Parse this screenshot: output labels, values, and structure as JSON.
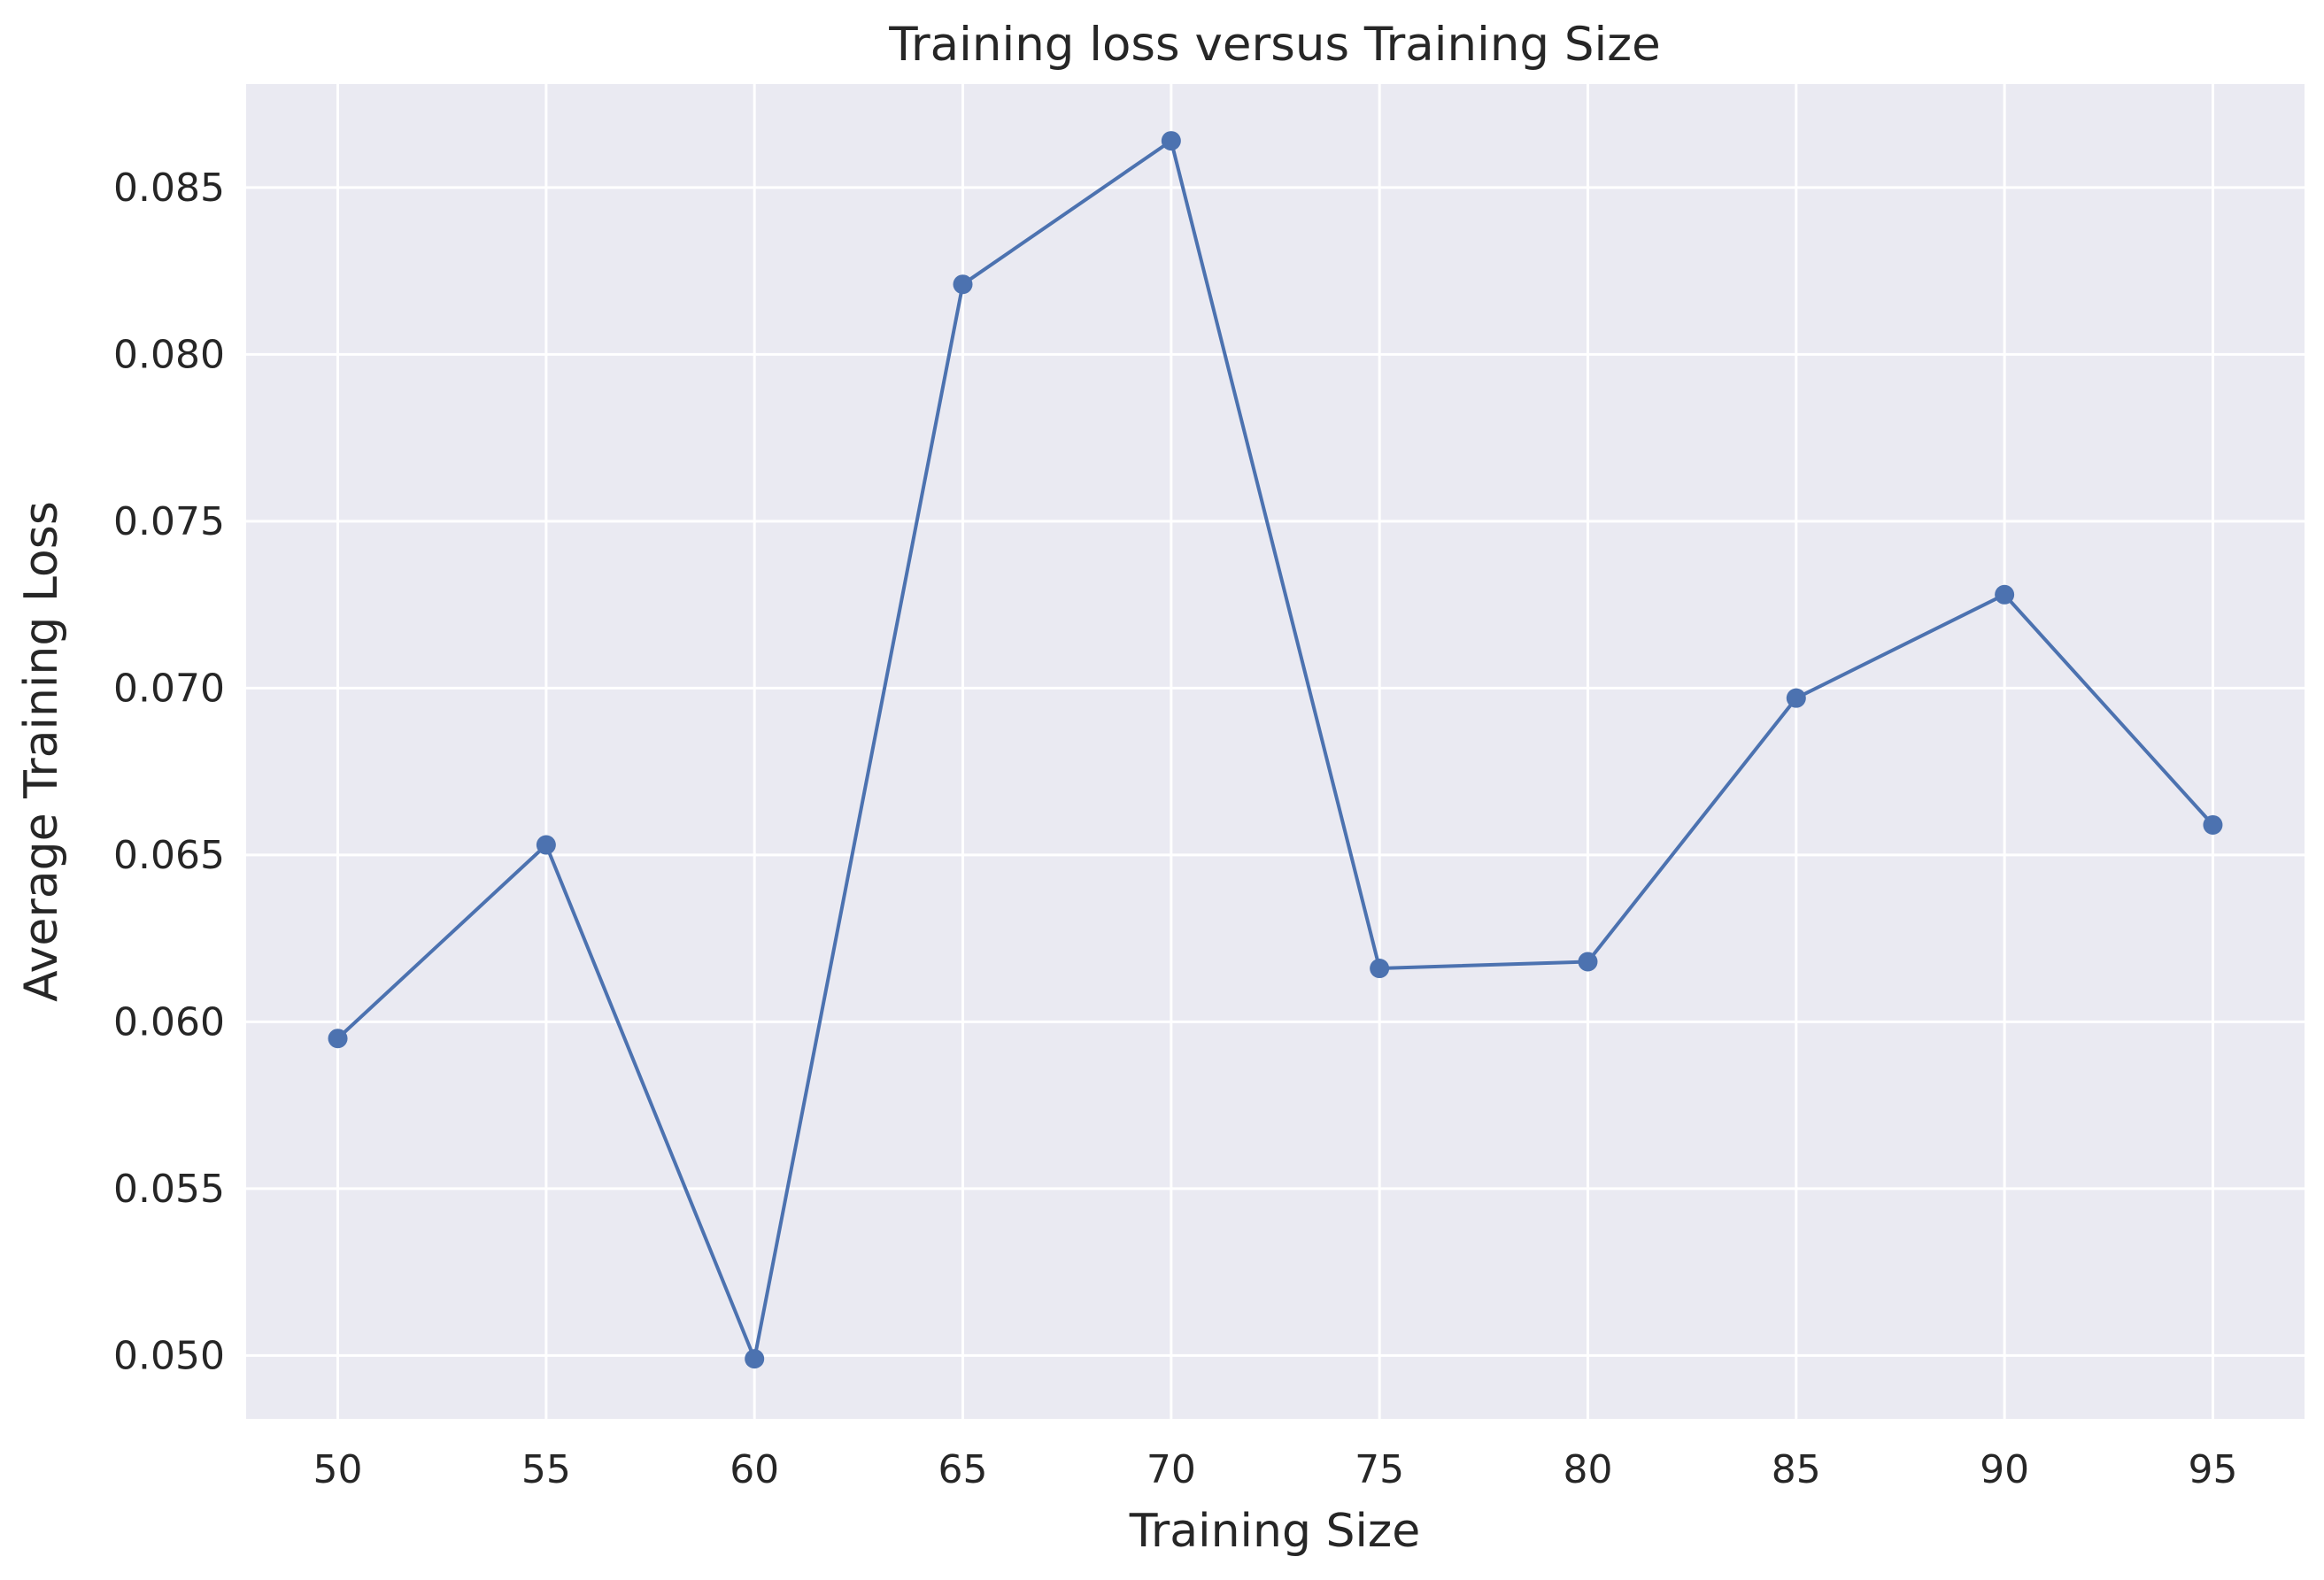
{
  "chart_data": {
    "type": "line",
    "title": "Training loss versus Training Size",
    "xlabel": "Training Size",
    "ylabel": "Average Training Loss",
    "x": [
      50,
      55,
      60,
      65,
      70,
      75,
      80,
      85,
      90,
      95
    ],
    "x_ticks": [
      "50",
      "55",
      "60",
      "65",
      "70",
      "75",
      "80",
      "85",
      "90",
      "95"
    ],
    "y_ticks": [
      "0.050",
      "0.055",
      "0.060",
      "0.065",
      "0.070",
      "0.075",
      "0.080",
      "0.085"
    ],
    "xlim": [
      47.8,
      97.2
    ],
    "ylim": [
      0.0481,
      0.0881
    ],
    "grid": true,
    "background": "#eaeaf2",
    "series": [
      {
        "color": "#4c72b0",
        "marker": "circle",
        "values": [
          0.0595,
          0.0653,
          0.0499,
          0.0821,
          0.0864,
          0.0616,
          0.0618,
          0.0697,
          0.0728,
          0.0659
        ]
      }
    ]
  }
}
